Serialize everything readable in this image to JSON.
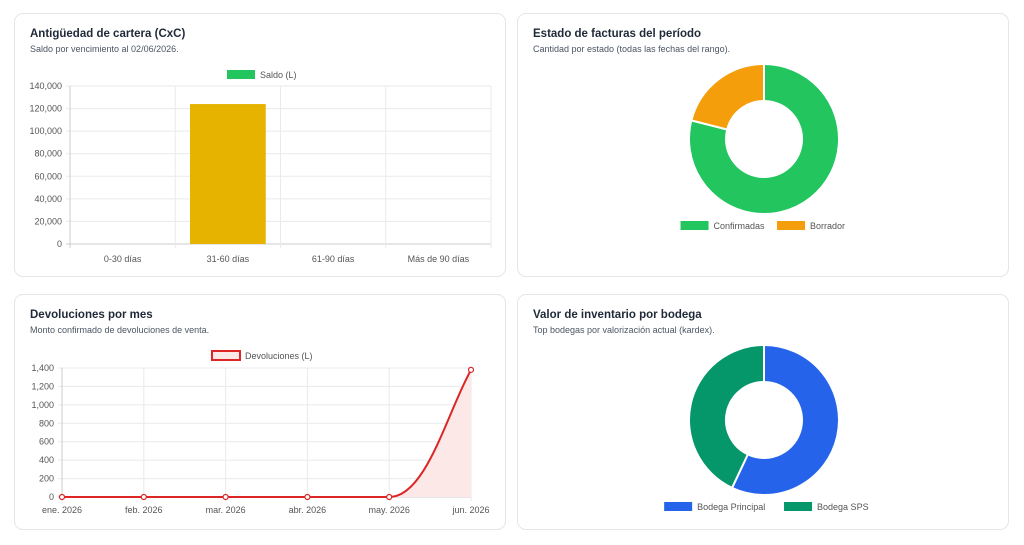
{
  "cards": [
    {
      "title": "Antigüedad de cartera (CxC)",
      "subtitle": "Saldo por vencimiento al 02/06/2026."
    },
    {
      "title": "Estado de facturas del período",
      "subtitle": "Cantidad por estado (todas las fechas del rango)."
    },
    {
      "title": "Devoluciones por mes",
      "subtitle": "Monto confirmado de devoluciones de venta."
    },
    {
      "title": "Valor de inventario por bodega",
      "subtitle": "Top bodegas por valorización actual (kardex)."
    }
  ],
  "chart_data": [
    {
      "type": "bar",
      "categories": [
        "0-30 días",
        "31-60 días",
        "61-90 días",
        "Más de 90 días"
      ],
      "series": [
        {
          "name": "Saldo (L)",
          "values": [
            0,
            124000,
            0,
            0
          ],
          "color": "#e6b400"
        }
      ],
      "legend_color": "#22c55e",
      "ylim": [
        0,
        140000
      ],
      "yticks": [
        "0",
        "20,000",
        "40,000",
        "60,000",
        "80,000",
        "100,000",
        "120,000",
        "140,000"
      ],
      "grid": true,
      "legend": "top-center"
    },
    {
      "type": "pie",
      "variant": "doughnut",
      "labels": [
        "Confirmadas",
        "Borrador"
      ],
      "values": [
        79,
        21
      ],
      "colors": [
        "#22c55e",
        "#f59e0b"
      ],
      "legend": "bottom-center"
    },
    {
      "type": "area",
      "categories": [
        "ene. 2026",
        "feb. 2026",
        "mar. 2026",
        "abr. 2026",
        "may. 2026",
        "jun. 2026"
      ],
      "series": [
        {
          "name": "Devoluciones (L)",
          "values": [
            0,
            0,
            0,
            0,
            0,
            1380
          ],
          "color": "#dc2626",
          "fill": "#fde8e8"
        }
      ],
      "ylim": [
        0,
        1400
      ],
      "yticks": [
        "0",
        "200",
        "400",
        "600",
        "800",
        "1,000",
        "1,200",
        "1,400"
      ],
      "grid": true,
      "legend": "top-center"
    },
    {
      "type": "pie",
      "variant": "doughnut",
      "labels": [
        "Bodega Principal",
        "Bodega SPS"
      ],
      "values": [
        57,
        43
      ],
      "colors": [
        "#2563eb",
        "#059669"
      ],
      "legend": "bottom-center"
    }
  ]
}
